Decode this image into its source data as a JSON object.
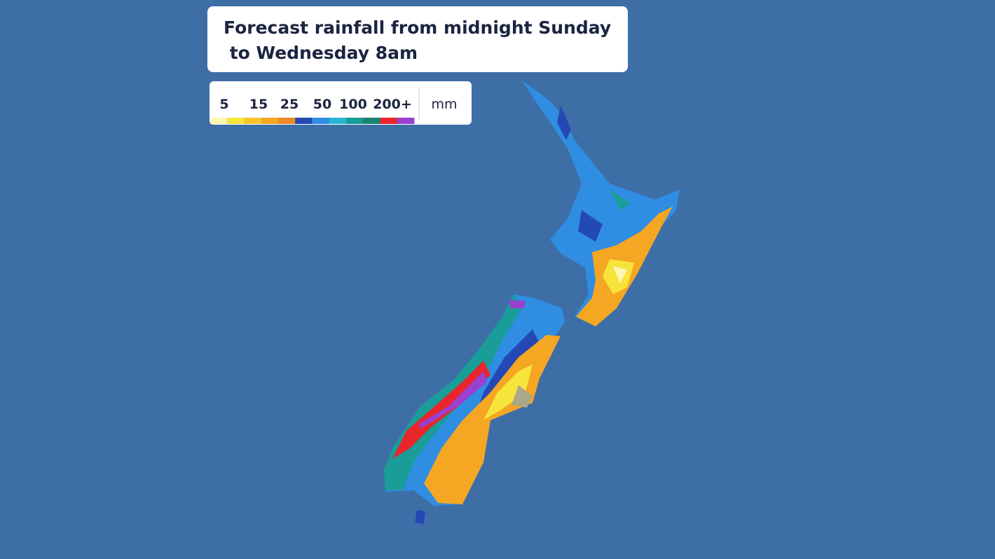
{
  "title": [
    "Forecast rainfall from midnight Sunday",
    " to Wednesday 8am"
  ],
  "legend": {
    "labels": [
      "5",
      "15",
      "25",
      "50",
      "100",
      "200+"
    ],
    "unit": "mm",
    "colors": [
      "#fdf7b4",
      "#f7e43a",
      "#f6c52e",
      "#f5a623",
      "#f08a24",
      "#2449b5",
      "#2f8de2",
      "#29b6d4",
      "#1a9c98",
      "#1a8474",
      "#e8262b",
      "#9b3fd0"
    ]
  }
}
